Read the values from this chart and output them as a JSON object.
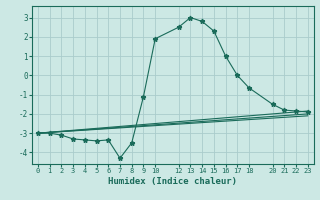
{
  "bg_color": "#cce8e4",
  "grid_color": "#aacccc",
  "line_color": "#1a6b5a",
  "xlabel": "Humidex (Indice chaleur)",
  "xlim": [
    -0.5,
    23.5
  ],
  "ylim": [
    -4.6,
    3.6
  ],
  "yticks": [
    -4,
    -3,
    -2,
    -1,
    0,
    1,
    2,
    3
  ],
  "xticks": [
    0,
    1,
    2,
    3,
    4,
    5,
    6,
    7,
    8,
    9,
    10,
    12,
    13,
    14,
    15,
    16,
    17,
    18,
    20,
    21,
    22,
    23
  ],
  "series": [
    {
      "x": [
        0,
        1,
        2,
        3,
        4,
        5,
        6,
        7,
        8,
        9,
        10,
        12,
        13,
        14,
        15,
        16,
        17,
        18,
        20,
        21,
        22,
        23
      ],
      "y": [
        -3.0,
        -3.0,
        -3.1,
        -3.3,
        -3.35,
        -3.4,
        -3.35,
        -4.3,
        -3.5,
        -1.1,
        1.9,
        2.5,
        3.0,
        2.8,
        2.3,
        1.0,
        0.0,
        -0.65,
        -1.5,
        -1.8,
        -1.85,
        -1.9
      ],
      "marker": "*",
      "markersize": 3.5
    },
    {
      "x": [
        0,
        23
      ],
      "y": [
        -3.0,
        -2.0
      ],
      "marker": null
    },
    {
      "x": [
        0,
        23
      ],
      "y": [
        -3.0,
        -2.1
      ],
      "marker": null
    },
    {
      "x": [
        0,
        23
      ],
      "y": [
        -3.0,
        -1.85
      ],
      "marker": null
    }
  ]
}
